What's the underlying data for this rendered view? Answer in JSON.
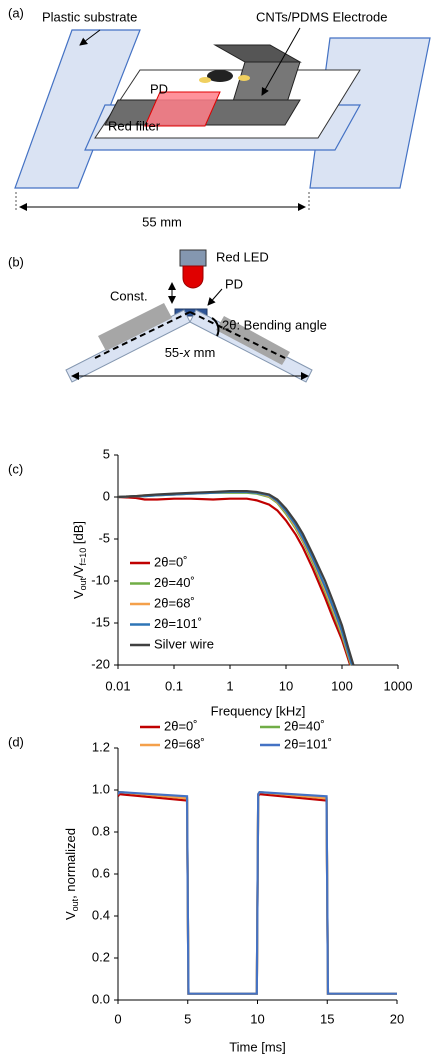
{
  "panels": {
    "a": "(a)",
    "b": "(b)",
    "c": "(c)",
    "d": "(d)"
  },
  "diagram_a": {
    "substrate_label": "Plastic substrate",
    "electrode_label": "CNTs/PDMS Electrode",
    "pd_label": "PD",
    "filter_label": "Red filter",
    "length_label": "55 mm"
  },
  "diagram_b": {
    "led_label": "Red LED",
    "const_label": "Const.",
    "pd_label": "PD",
    "angle_label": "2θ: Bending angle",
    "length_label": [
      {
        "text": "55-"
      },
      {
        "text": "x",
        "italic": true
      },
      {
        "text": " mm"
      }
    ]
  },
  "chart_data": [
    {
      "type": "line",
      "xscale": "log",
      "xlabel": "Frequency [kHz]",
      "ylabel": [
        {
          "text": "V"
        },
        {
          "text": "out",
          "sub": true
        },
        {
          "text": "/V"
        },
        {
          "text": "f=10",
          "sub": true
        },
        {
          "text": " [dB]"
        }
      ],
      "xlim": [
        0.01,
        1000
      ],
      "xticks": [
        0.01,
        0.1,
        1,
        10,
        100,
        1000
      ],
      "ylim": [
        -20,
        5
      ],
      "yticks": [
        -20,
        -15,
        -10,
        -5,
        0,
        5
      ],
      "legend": "lower left",
      "series": [
        {
          "name": "2θ=0˚",
          "color": "#c00000",
          "x": [
            0.01,
            0.02,
            0.03,
            0.05,
            0.1,
            0.2,
            0.5,
            1,
            2,
            3,
            5,
            7,
            10,
            15,
            20,
            30,
            50,
            70,
            100,
            140
          ],
          "values": [
            0,
            -0.1,
            -0.3,
            -0.3,
            -0.2,
            -0.2,
            -0.3,
            -0.2,
            -0.2,
            -0.4,
            -0.9,
            -1.6,
            -2.8,
            -4.5,
            -6,
            -8.5,
            -12,
            -14.5,
            -17,
            -20
          ]
        },
        {
          "name": "2θ=40˚",
          "color": "#70ad47",
          "x": [
            0.01,
            0.02,
            0.03,
            0.05,
            0.1,
            0.2,
            0.5,
            1,
            2,
            3,
            5,
            7,
            10,
            15,
            20,
            30,
            50,
            70,
            100,
            145
          ],
          "values": [
            0,
            0.1,
            0.1,
            0.2,
            0.3,
            0.4,
            0.5,
            0.5,
            0.5,
            0.4,
            0,
            -0.7,
            -2,
            -3.8,
            -5.3,
            -7.8,
            -11.3,
            -13.8,
            -16.5,
            -20
          ]
        },
        {
          "name": "2θ=68˚",
          "color": "#f4a04a",
          "x": [
            0.01,
            0.02,
            0.03,
            0.05,
            0.1,
            0.2,
            0.5,
            1,
            2,
            3,
            5,
            7,
            10,
            15,
            20,
            30,
            50,
            70,
            100,
            148
          ],
          "values": [
            0,
            0.1,
            0.2,
            0.2,
            0.3,
            0.4,
            0.5,
            0.6,
            0.6,
            0.5,
            0.1,
            -0.6,
            -1.8,
            -3.6,
            -5.1,
            -7.5,
            -11,
            -13.5,
            -16.2,
            -20
          ]
        },
        {
          "name": "2θ=101˚",
          "color": "#2e75b6",
          "x": [
            0.01,
            0.02,
            0.03,
            0.05,
            0.1,
            0.2,
            0.5,
            1,
            2,
            3,
            5,
            7,
            10,
            15,
            20,
            30,
            50,
            70,
            100,
            150
          ],
          "values": [
            0,
            0.1,
            0.1,
            0.2,
            0.3,
            0.4,
            0.5,
            0.6,
            0.6,
            0.5,
            0.2,
            -0.5,
            -1.7,
            -3.4,
            -4.9,
            -7.3,
            -10.7,
            -13.2,
            -16,
            -20
          ]
        },
        {
          "name": "Silver wire",
          "color": "#404040",
          "x": [
            0.01,
            0.02,
            0.03,
            0.05,
            0.1,
            0.2,
            0.5,
            1,
            2,
            3,
            5,
            7,
            10,
            15,
            20,
            30,
            50,
            70,
            100,
            130,
            160
          ],
          "values": [
            0,
            0.1,
            0.2,
            0.3,
            0.4,
            0.5,
            0.6,
            0.7,
            0.7,
            0.6,
            0.3,
            -0.3,
            -1.4,
            -3,
            -4.4,
            -6.8,
            -10,
            -12.5,
            -15.3,
            -18,
            -20
          ]
        }
      ]
    },
    {
      "type": "line",
      "xlabel": "Time [ms]",
      "ylabel": [
        {
          "text": "V"
        },
        {
          "text": "out",
          "sub": true
        },
        {
          "text": ", normalized"
        }
      ],
      "xlim": [
        0,
        20
      ],
      "xticks": [
        0,
        5,
        10,
        15,
        20
      ],
      "ylim": [
        0,
        1.2
      ],
      "yticks": [
        {
          "value": 0,
          "label": "0.0"
        },
        {
          "value": 0.2,
          "label": "0.2"
        },
        {
          "value": 0.4,
          "label": "0.4"
        },
        {
          "value": 0.6,
          "label": "0.6"
        },
        {
          "value": 0.8,
          "label": "0.8"
        },
        {
          "value": 1,
          "label": "1.0"
        },
        {
          "value": 1.2,
          "label": "1.2"
        }
      ],
      "legend": "top",
      "legend_columns": 2,
      "series": [
        {
          "name": "2θ=0˚",
          "color": "#c00000",
          "x": [
            0,
            0.1,
            4.95,
            5.05,
            9.95,
            10.05,
            10.15,
            14.95,
            15.05,
            20
          ],
          "values": [
            0.97,
            0.98,
            0.95,
            0.03,
            0.03,
            0.97,
            0.98,
            0.95,
            0.03,
            0.03
          ]
        },
        {
          "name": "2θ=40˚",
          "color": "#70ad47",
          "x": [
            0,
            0.1,
            4.95,
            5.05,
            9.95,
            10.05,
            10.15,
            14.95,
            15.05,
            20
          ],
          "values": [
            0.98,
            0.99,
            0.96,
            0.03,
            0.03,
            0.98,
            0.99,
            0.96,
            0.03,
            0.03
          ]
        },
        {
          "name": "2θ=68˚",
          "color": "#f4a04a",
          "x": [
            0,
            0.1,
            4.95,
            5.05,
            9.95,
            10.05,
            10.15,
            14.95,
            15.05,
            20
          ],
          "values": [
            0.98,
            0.99,
            0.96,
            0.03,
            0.03,
            0.98,
            0.99,
            0.96,
            0.03,
            0.03
          ]
        },
        {
          "name": "2θ=101˚",
          "color": "#4472c4",
          "x": [
            0,
            0.1,
            4.95,
            5.05,
            9.95,
            10.05,
            10.15,
            14.95,
            15.05,
            20
          ],
          "values": [
            0.98,
            0.99,
            0.97,
            0.03,
            0.03,
            0.98,
            0.99,
            0.97,
            0.03,
            0.03
          ]
        }
      ]
    }
  ]
}
